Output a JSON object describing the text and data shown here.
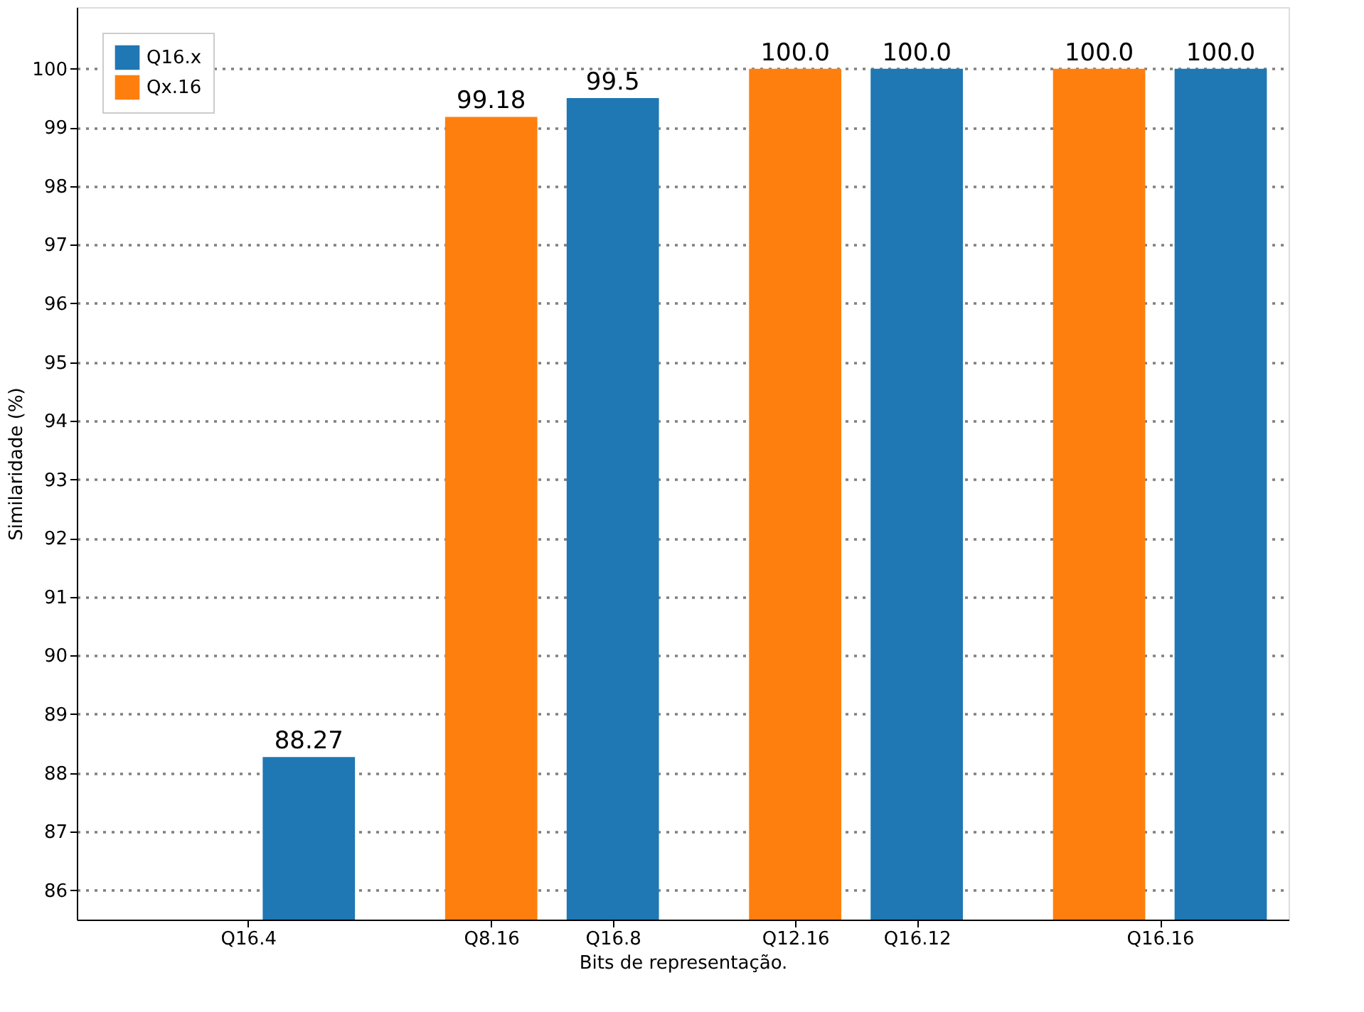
{
  "chart_data": {
    "type": "bar",
    "xlabel": "Bits de representação.",
    "ylabel": "Similaridade (%)",
    "categories": [
      "Q16.4",
      "Q8.16",
      "Q16.8",
      "Q12.16",
      "Q16.12",
      "Q16.16"
    ],
    "ylim": [
      85.5,
      101.05
    ],
    "yticks": [
      86,
      87,
      88,
      89,
      90,
      91,
      92,
      93,
      94,
      95,
      96,
      97,
      98,
      99,
      100
    ],
    "grid": "y",
    "legend": "top left",
    "series": [
      {
        "name": "Q16.x",
        "color": "#1f77b4",
        "values": [
          88.27,
          null,
          99.5,
          null,
          100.0,
          100.0
        ],
        "value_labels": [
          "88.27",
          null,
          "99.5",
          null,
          "100.0",
          "100.0"
        ]
      },
      {
        "name": "Qx.16",
        "color": "#ff7f0e",
        "values": [
          null,
          99.18,
          null,
          100.0,
          null,
          100.0
        ],
        "value_labels": [
          null,
          "99.18",
          null,
          "100.0",
          null,
          "100.0"
        ]
      }
    ]
  }
}
